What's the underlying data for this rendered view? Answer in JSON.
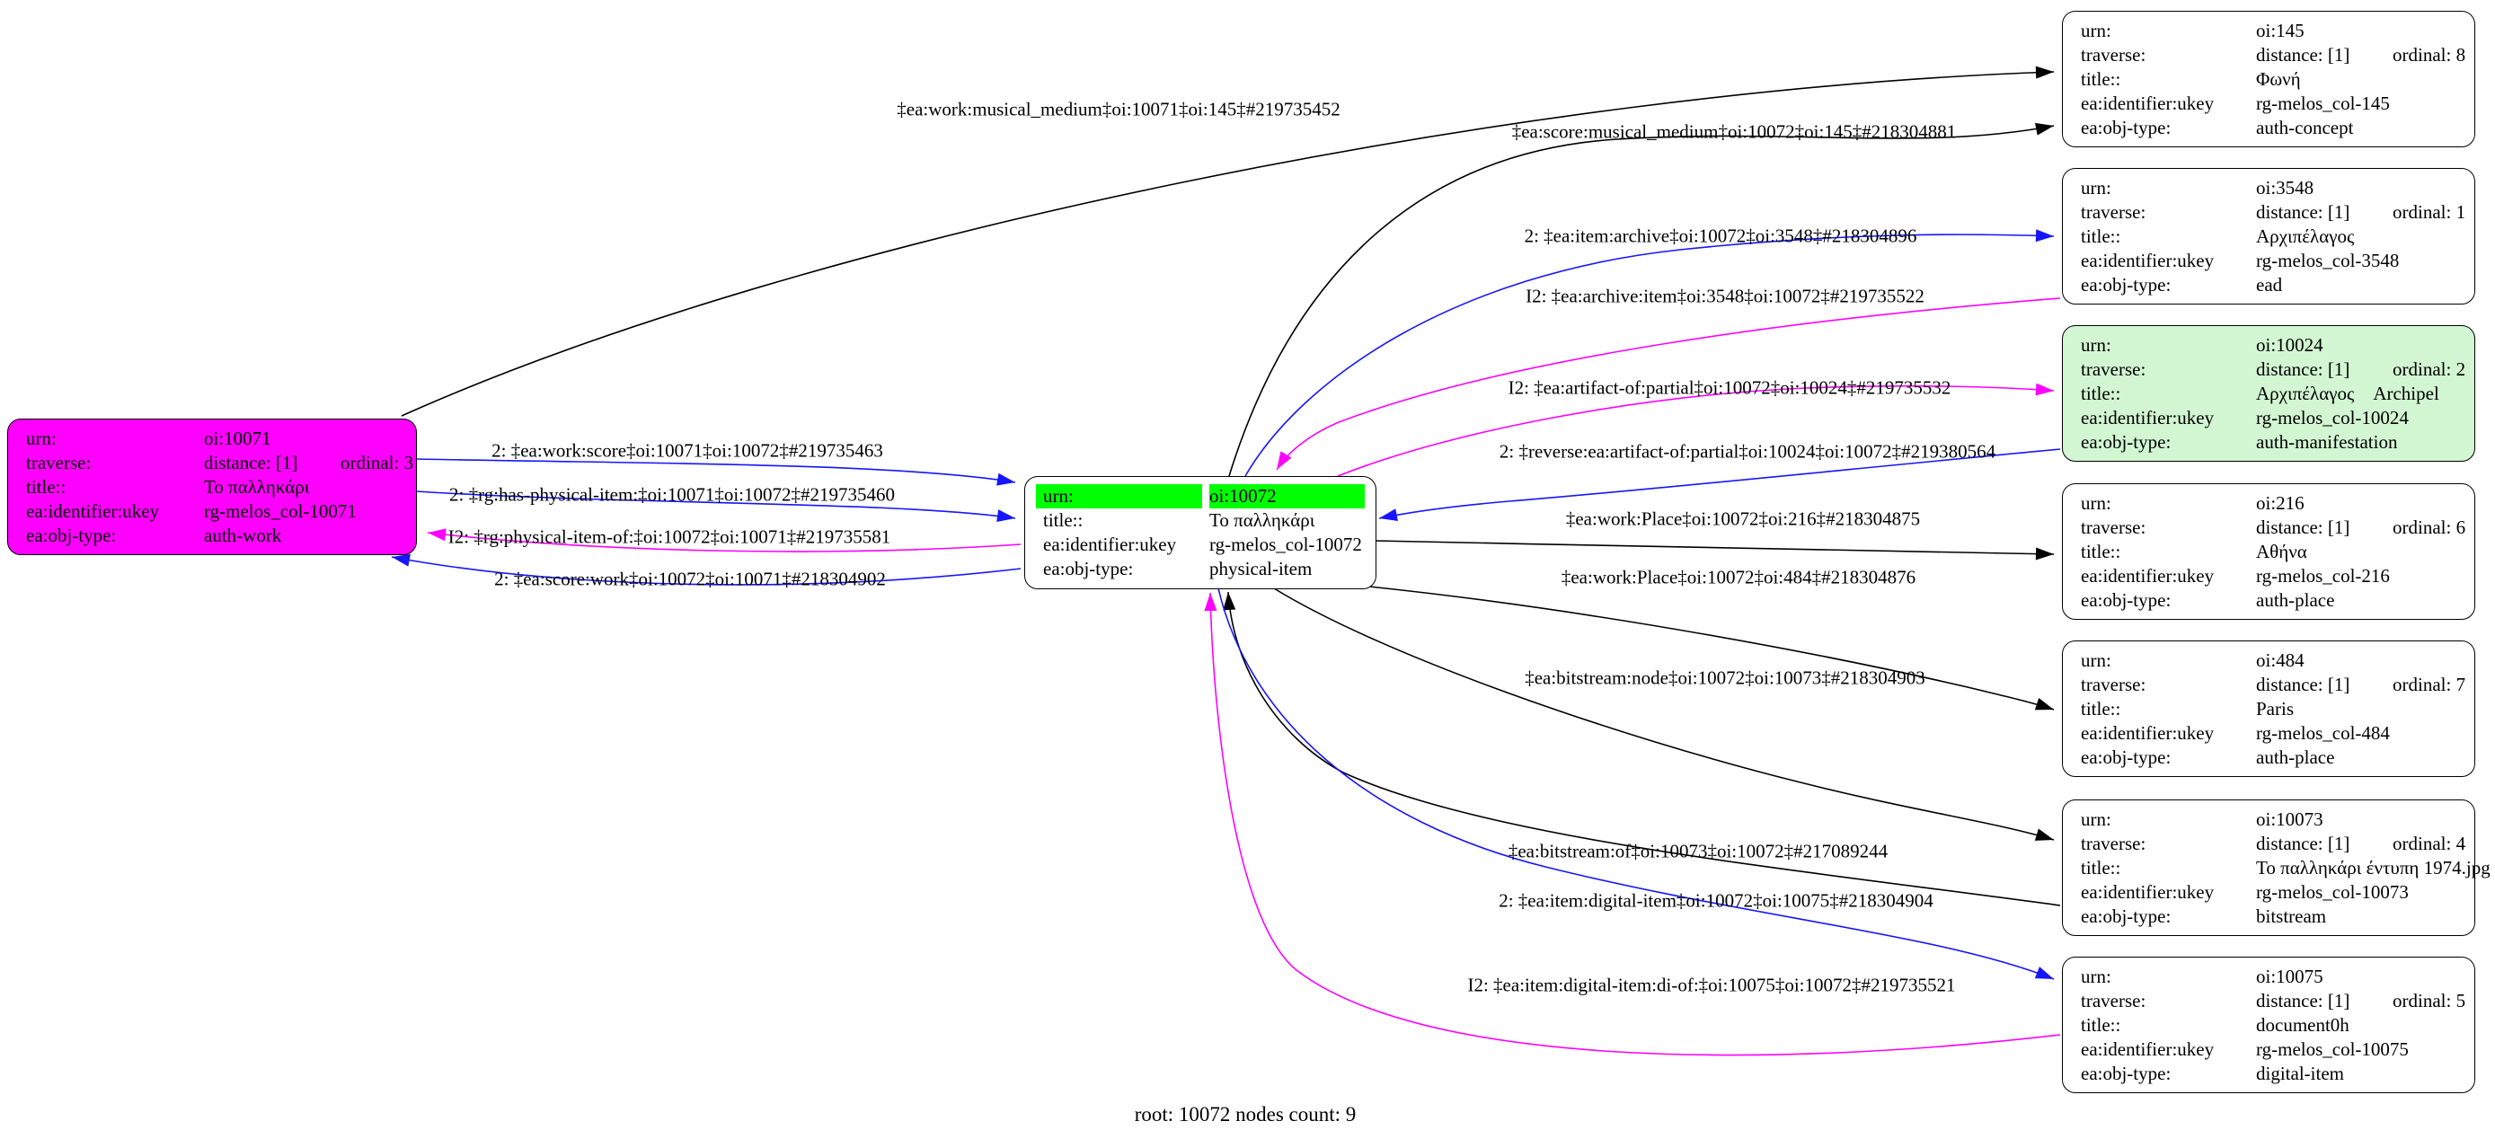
{
  "caption": "root: 10072 nodes count: 9",
  "colors": {
    "root_work_node_fill": "#ff00ff",
    "focus_row_highlight": "#00ff00",
    "manifestation_node_fill": "#d2f5d2",
    "default_node_fill": "#ffffff",
    "edge_black": "#000000",
    "edge_blue": "#1515ff",
    "edge_magenta": "#ff00ff"
  },
  "nodes": [
    {
      "id": "10071",
      "fill": "#ff00ff",
      "rows": [
        {
          "label": "urn:",
          "value": "oi:10071"
        },
        {
          "label": "traverse:",
          "value": "distance: [1]",
          "value2": "ordinal: 3"
        },
        {
          "label": "title::",
          "value": "Το παλληκάρι"
        },
        {
          "label": "ea:identifier:ukey",
          "value": "rg-melos_col-10071"
        },
        {
          "label": "ea:obj-type:",
          "value": "auth-work"
        }
      ]
    },
    {
      "id": "10072",
      "fill": "#ffffff",
      "rows": [
        {
          "label": "urn:",
          "value": "oi:10072",
          "highlight": true
        },
        {
          "label": "title::",
          "value": "Το παλληκάρι"
        },
        {
          "label": "ea:identifier:ukey",
          "value": "rg-melos_col-10072"
        },
        {
          "label": "ea:obj-type:",
          "value": "physical-item"
        }
      ]
    },
    {
      "id": "145",
      "fill": "#ffffff",
      "rows": [
        {
          "label": "urn:",
          "value": "oi:145"
        },
        {
          "label": "traverse:",
          "value": "distance: [1]",
          "value2": "ordinal: 8"
        },
        {
          "label": "title::",
          "value": "Φωνή"
        },
        {
          "label": "ea:identifier:ukey",
          "value": "rg-melos_col-145"
        },
        {
          "label": "ea:obj-type:",
          "value": "auth-concept"
        }
      ]
    },
    {
      "id": "3548",
      "fill": "#ffffff",
      "rows": [
        {
          "label": "urn:",
          "value": "oi:3548"
        },
        {
          "label": "traverse:",
          "value": "distance: [1]",
          "value2": "ordinal: 1"
        },
        {
          "label": "title::",
          "value": "Αρχιπέλαγος"
        },
        {
          "label": "ea:identifier:ukey",
          "value": "rg-melos_col-3548"
        },
        {
          "label": "ea:obj-type:",
          "value": "ead"
        }
      ]
    },
    {
      "id": "10024",
      "fill": "#d2f5d2",
      "rows": [
        {
          "label": "urn:",
          "value": "oi:10024"
        },
        {
          "label": "traverse:",
          "value": "distance: [1]",
          "value2": "ordinal: 2"
        },
        {
          "label": "title::",
          "value": "Αρχιπέλαγος    Archipel"
        },
        {
          "label": "ea:identifier:ukey",
          "value": "rg-melos_col-10024"
        },
        {
          "label": "ea:obj-type:",
          "value": "auth-manifestation"
        }
      ]
    },
    {
      "id": "216",
      "fill": "#ffffff",
      "rows": [
        {
          "label": "urn:",
          "value": "oi:216"
        },
        {
          "label": "traverse:",
          "value": "distance: [1]",
          "value2": "ordinal: 6"
        },
        {
          "label": "title::",
          "value": "Αθήνα"
        },
        {
          "label": "ea:identifier:ukey",
          "value": "rg-melos_col-216"
        },
        {
          "label": "ea:obj-type:",
          "value": "auth-place"
        }
      ]
    },
    {
      "id": "484",
      "fill": "#ffffff",
      "rows": [
        {
          "label": "urn:",
          "value": "oi:484"
        },
        {
          "label": "traverse:",
          "value": "distance: [1]",
          "value2": "ordinal: 7"
        },
        {
          "label": "title::",
          "value": "Paris"
        },
        {
          "label": "ea:identifier:ukey",
          "value": "rg-melos_col-484"
        },
        {
          "label": "ea:obj-type:",
          "value": "auth-place"
        }
      ]
    },
    {
      "id": "10073",
      "fill": "#ffffff",
      "rows": [
        {
          "label": "urn:",
          "value": "oi:10073"
        },
        {
          "label": "traverse:",
          "value": "distance: [1]",
          "value2": "ordinal: 4"
        },
        {
          "label": "title::",
          "value": "Το παλληκάρι έντυπη 1974.jpg"
        },
        {
          "label": "ea:identifier:ukey",
          "value": "rg-melos_col-10073"
        },
        {
          "label": "ea:obj-type:",
          "value": "bitstream"
        }
      ]
    },
    {
      "id": "10075",
      "fill": "#ffffff",
      "rows": [
        {
          "label": "urn:",
          "value": "oi:10075"
        },
        {
          "label": "traverse:",
          "value": "distance: [1]",
          "value2": "ordinal: 5"
        },
        {
          "label": "title::",
          "value": "document0h"
        },
        {
          "label": "ea:identifier:ukey",
          "value": "rg-melos_col-10075"
        },
        {
          "label": "ea:obj-type:",
          "value": "digital-item"
        }
      ]
    }
  ],
  "edges": [
    {
      "id": "e1",
      "color": "black",
      "label": "‡ea:work:musical_medium‡oi:10071‡oi:145‡#219735452"
    },
    {
      "id": "e2",
      "color": "blue",
      "label": "2: ‡ea:work:score‡oi:10071‡oi:10072‡#219735463"
    },
    {
      "id": "e3",
      "color": "blue",
      "label": "2: ‡rg:has-physical-item:‡oi:10071‡oi:10072‡#219735460"
    },
    {
      "id": "e4",
      "color": "magenta",
      "label": "I2: ‡rg:physical-item-of:‡oi:10072‡oi:10071‡#219735581"
    },
    {
      "id": "e5",
      "color": "blue",
      "label": "2: ‡ea:score:work‡oi:10072‡oi:10071‡#218304902"
    },
    {
      "id": "e6",
      "color": "black",
      "label": "‡ea:score:musical_medium‡oi:10072‡oi:145‡#218304881"
    },
    {
      "id": "e7",
      "color": "blue",
      "label": "2: ‡ea:item:archive‡oi:10072‡oi:3548‡#218304896"
    },
    {
      "id": "e8",
      "color": "magenta",
      "label": "I2: ‡ea:archive:item‡oi:3548‡oi:10072‡#219735522"
    },
    {
      "id": "e9",
      "color": "magenta",
      "label": "I2: ‡ea:artifact-of:partial‡oi:10072‡oi:10024‡#219735532"
    },
    {
      "id": "e10",
      "color": "blue",
      "label": "2: ‡reverse:ea:artifact-of:partial‡oi:10024‡oi:10072‡#219380564"
    },
    {
      "id": "e11",
      "color": "black",
      "label": "‡ea:work:Place‡oi:10072‡oi:216‡#218304875"
    },
    {
      "id": "e12",
      "color": "black",
      "label": "‡ea:work:Place‡oi:10072‡oi:484‡#218304876"
    },
    {
      "id": "e13",
      "color": "black",
      "label": "‡ea:bitstream:node‡oi:10072‡oi:10073‡#218304903"
    },
    {
      "id": "e14",
      "color": "black",
      "label": "‡ea:bitstream:of‡oi:10073‡oi:10072‡#217089244"
    },
    {
      "id": "e15",
      "color": "blue",
      "label": "2: ‡ea:item:digital-item‡oi:10072‡oi:10075‡#218304904"
    },
    {
      "id": "e16",
      "color": "magenta",
      "label": "I2: ‡ea:item:digital-item:di-of:‡oi:10075‡oi:10072‡#219735521"
    }
  ]
}
